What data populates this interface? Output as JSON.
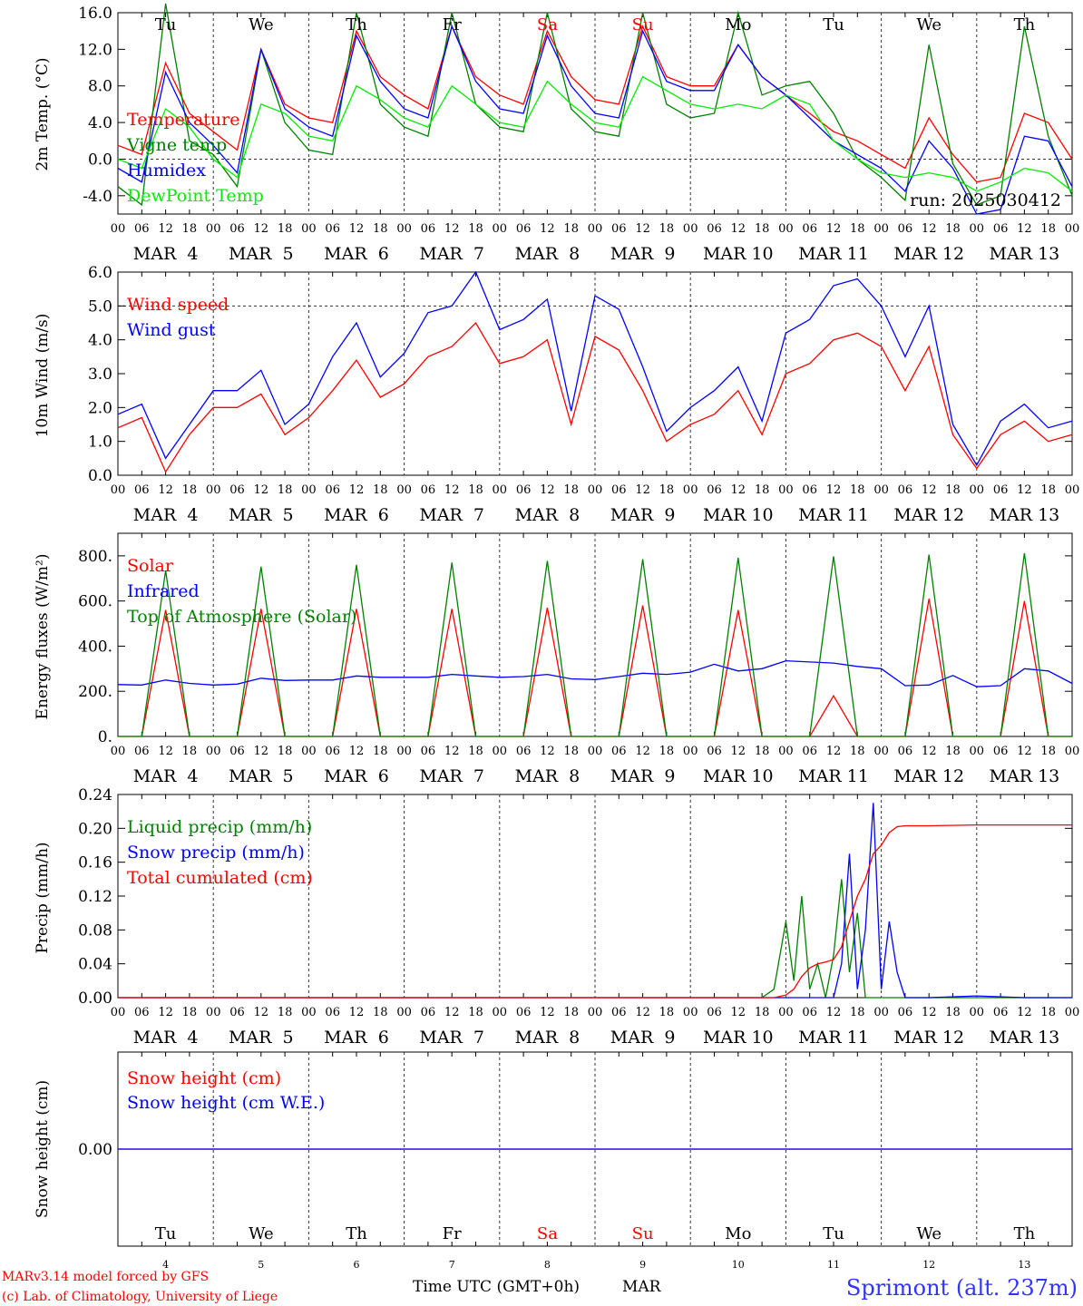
{
  "chart_data": [
    {
      "type": "line",
      "id": "temp",
      "ylabel": "2m Temp. (°C)",
      "ylim": [
        -6,
        16
      ],
      "yticks": [
        "16.0",
        "12.0",
        "8.0",
        "4.0",
        "0.0",
        "-4.0"
      ],
      "ytick_values": [
        16,
        12,
        8,
        4,
        0,
        -4
      ],
      "reference_line": 0,
      "run_label": "run: 2025030412",
      "x_hours": [
        0,
        6,
        12,
        18,
        24,
        30,
        36,
        42,
        48,
        54,
        60,
        66,
        72,
        78,
        84,
        90,
        96,
        102,
        108,
        114,
        120,
        126,
        132,
        138,
        144,
        150,
        156,
        162,
        168,
        174,
        180,
        186,
        192,
        198,
        204,
        210,
        216,
        222,
        228,
        234,
        240
      ],
      "series": [
        {
          "name": "Temperature",
          "color": "#ff0000",
          "values": [
            1.5,
            0.5,
            10.5,
            5.0,
            3.0,
            1.0,
            12.0,
            6.0,
            4.5,
            4.0,
            14.0,
            9.0,
            7.0,
            5.5,
            14.5,
            9.0,
            7.0,
            6.0,
            14.0,
            9.0,
            6.5,
            6.0,
            14.5,
            9.0,
            8.0,
            8.0,
            12.5,
            9.0,
            7.0,
            5.0,
            3.0,
            2.0,
            0.5,
            -1.0,
            4.5,
            0.5,
            -2.5,
            -2.0,
            5.0,
            4.0,
            0.0
          ]
        },
        {
          "name": "Vigne temp",
          "color": "#008000",
          "values": [
            -3.0,
            -5.0,
            17.0,
            2.0,
            0.5,
            -3.0,
            12.0,
            4.0,
            1.0,
            0.5,
            16.0,
            6.0,
            3.5,
            2.5,
            16.0,
            6.0,
            3.5,
            3.0,
            16.0,
            5.5,
            3.0,
            2.5,
            16.0,
            6.0,
            4.5,
            5.0,
            16.0,
            7.0,
            8.0,
            8.5,
            5.0,
            0.0,
            -2.0,
            -4.5,
            12.5,
            -0.5,
            -5.0,
            -4.0,
            14.5,
            2.5,
            -4.0
          ]
        },
        {
          "name": "Humidex",
          "color": "#0000ff",
          "values": [
            -1.0,
            -2.5,
            9.5,
            4.0,
            1.5,
            -1.5,
            12.0,
            5.5,
            3.5,
            2.5,
            13.5,
            8.5,
            5.5,
            4.5,
            14.5,
            8.5,
            5.5,
            5.0,
            13.5,
            8.0,
            5.0,
            4.5,
            14.0,
            8.5,
            7.5,
            7.5,
            12.5,
            9.0,
            7.0,
            4.5,
            2.0,
            0.5,
            -1.0,
            -3.5,
            2.0,
            -1.0,
            -6.0,
            -5.5,
            2.5,
            2.0,
            -3.0
          ]
        },
        {
          "name": "DewPoint Temp",
          "color": "#00ee00",
          "values": [
            0.0,
            -1.0,
            5.5,
            3.5,
            0.0,
            -2.0,
            6.0,
            5.0,
            2.5,
            2.0,
            8.0,
            6.5,
            4.5,
            3.5,
            8.0,
            6.0,
            4.0,
            3.5,
            8.5,
            6.0,
            4.0,
            3.5,
            9.0,
            7.5,
            6.0,
            5.5,
            6.0,
            5.5,
            7.0,
            6.0,
            2.0,
            0.0,
            -1.5,
            -2.0,
            -1.5,
            -2.0,
            -3.5,
            -2.5,
            -1.0,
            -1.5,
            -3.5
          ]
        }
      ]
    },
    {
      "type": "line",
      "id": "wind",
      "ylabel": "10m Wind (m/s)",
      "ylim": [
        0,
        6
      ],
      "yticks": [
        "6.0",
        "5.0",
        "4.0",
        "3.0",
        "2.0",
        "1.0",
        "0.0"
      ],
      "ytick_values": [
        6,
        5,
        4,
        3,
        2,
        1,
        0
      ],
      "reference_line": 5,
      "x_hours": [
        0,
        6,
        12,
        18,
        24,
        30,
        36,
        42,
        48,
        54,
        60,
        66,
        72,
        78,
        84,
        90,
        96,
        102,
        108,
        114,
        120,
        126,
        132,
        138,
        144,
        150,
        156,
        162,
        168,
        174,
        180,
        186,
        192,
        198,
        204,
        210,
        216,
        222,
        228,
        234,
        240
      ],
      "series": [
        {
          "name": "Wind speed",
          "color": "#ff0000",
          "values": [
            1.4,
            1.7,
            0.1,
            1.2,
            2.0,
            2.0,
            2.4,
            1.2,
            1.7,
            2.5,
            3.4,
            2.3,
            2.7,
            3.5,
            3.8,
            4.5,
            3.3,
            3.5,
            4.0,
            1.5,
            4.1,
            3.7,
            2.5,
            1.0,
            1.5,
            1.8,
            2.5,
            1.2,
            3.0,
            3.3,
            4.0,
            4.2,
            3.8,
            2.5,
            3.8,
            1.2,
            0.2,
            1.2,
            1.6,
            1.0,
            1.2
          ]
        },
        {
          "name": "Wind gust",
          "color": "#0000ff",
          "values": [
            1.8,
            2.1,
            0.5,
            1.5,
            2.5,
            2.5,
            3.1,
            1.5,
            2.1,
            3.5,
            4.5,
            2.9,
            3.6,
            4.8,
            5.0,
            6.0,
            4.3,
            4.6,
            5.2,
            1.9,
            5.3,
            4.9,
            3.2,
            1.3,
            2.0,
            2.5,
            3.2,
            1.6,
            4.2,
            4.6,
            5.6,
            5.8,
            5.0,
            3.5,
            5.0,
            1.5,
            0.3,
            1.6,
            2.1,
            1.4,
            1.6
          ]
        }
      ]
    },
    {
      "type": "line",
      "id": "energy",
      "ylabel": "Energy fluxes (W/m²)",
      "ylim": [
        0,
        900
      ],
      "yticks": [
        "800.",
        "600.",
        "400.",
        "200.",
        "0."
      ],
      "ytick_values": [
        800,
        600,
        400,
        200,
        0
      ],
      "x_hours": [
        0,
        6,
        12,
        18,
        24,
        30,
        36,
        42,
        48,
        54,
        60,
        66,
        72,
        78,
        84,
        90,
        96,
        102,
        108,
        114,
        120,
        126,
        132,
        138,
        144,
        150,
        156,
        162,
        168,
        174,
        180,
        186,
        192,
        198,
        204,
        210,
        216,
        222,
        228,
        234,
        240
      ],
      "series": [
        {
          "name": "Solar",
          "color": "#ff0000",
          "values": [
            0,
            0,
            560,
            0,
            0,
            0,
            565,
            0,
            0,
            0,
            565,
            0,
            0,
            0,
            565,
            0,
            0,
            0,
            570,
            0,
            0,
            0,
            580,
            0,
            0,
            0,
            560,
            0,
            0,
            0,
            180,
            0,
            0,
            0,
            610,
            0,
            0,
            0,
            600,
            0,
            0
          ]
        },
        {
          "name": "Infrared",
          "color": "#0000ff",
          "values": [
            230,
            228,
            250,
            235,
            228,
            232,
            258,
            248,
            250,
            250,
            268,
            262,
            262,
            262,
            275,
            268,
            262,
            265,
            275,
            255,
            252,
            265,
            280,
            275,
            285,
            320,
            290,
            300,
            335,
            330,
            325,
            310,
            300,
            225,
            228,
            270,
            220,
            225,
            300,
            290,
            235
          ]
        },
        {
          "name": "Top of Atmosphere (Solar)",
          "color": "#008000",
          "values": [
            0,
            0,
            735,
            0,
            0,
            0,
            752,
            0,
            0,
            0,
            760,
            0,
            0,
            0,
            770,
            0,
            0,
            0,
            778,
            0,
            0,
            0,
            785,
            0,
            0,
            0,
            792,
            0,
            0,
            0,
            798,
            0,
            0,
            0,
            805,
            0,
            0,
            0,
            812,
            0,
            0
          ]
        }
      ]
    },
    {
      "type": "line",
      "id": "precip",
      "ylabel": "Precip (mm/h)",
      "ylim": [
        0,
        0.24
      ],
      "yticks": [
        "0.24",
        "0.20",
        "0.16",
        "0.12",
        "0.08",
        "0.04",
        "0.00"
      ],
      "ytick_values": [
        0.24,
        0.2,
        0.16,
        0.12,
        0.08,
        0.04,
        0
      ],
      "x_hours": [
        0,
        24,
        48,
        72,
        96,
        120,
        144,
        162,
        165,
        168,
        170,
        172,
        174,
        176,
        178,
        180,
        182,
        184,
        186,
        188,
        190,
        192,
        194,
        196,
        198,
        200,
        204,
        216,
        228,
        240
      ],
      "series": [
        {
          "name": "Liquid precip (mm/h)",
          "color": "#008000",
          "values": [
            0,
            0,
            0,
            0,
            0,
            0,
            0,
            0,
            0.01,
            0.09,
            0.02,
            0.12,
            0.01,
            0.04,
            0.0,
            0.05,
            0.14,
            0.03,
            0.1,
            0.0,
            0.0,
            0.0,
            0.0,
            0.0,
            0.0,
            0.0,
            0.0,
            0.0,
            0.0,
            0.0
          ]
        },
        {
          "name": "Snow precip (mm/h)",
          "color": "#0000ff",
          "values": [
            0,
            0,
            0,
            0,
            0,
            0,
            0,
            0,
            0,
            0,
            0,
            0,
            0,
            0,
            0,
            0.0,
            0.04,
            0.17,
            0.01,
            0.08,
            0.23,
            0.01,
            0.09,
            0.03,
            0.0,
            0.0,
            0.0,
            0.002,
            0.0,
            0.0
          ]
        },
        {
          "name": "Total cumulated (cm)",
          "color": "#ff0000",
          "values": [
            0,
            0,
            0,
            0,
            0,
            0,
            0,
            0,
            0.0,
            0.003,
            0.01,
            0.025,
            0.035,
            0.04,
            0.042,
            0.045,
            0.06,
            0.09,
            0.12,
            0.14,
            0.17,
            0.18,
            0.195,
            0.202,
            0.203,
            0.203,
            0.203,
            0.204,
            0.204,
            0.204
          ]
        }
      ]
    },
    {
      "type": "line",
      "id": "snow",
      "ylabel": "Snow height (cm)",
      "ylim": [
        -1,
        1
      ],
      "yticks": [
        "0.00"
      ],
      "ytick_values": [
        0
      ],
      "x_hours": [
        0,
        240
      ],
      "series": [
        {
          "name": "Snow height (cm)",
          "color": "#ff0000",
          "values": [
            0,
            0
          ]
        },
        {
          "name": "Snow height (cm W.E.)",
          "color": "#0000ff",
          "values": [
            0,
            0
          ]
        }
      ]
    }
  ],
  "weekdays": [
    {
      "label": "Tu",
      "color": "#000000"
    },
    {
      "label": "We",
      "color": "#000000"
    },
    {
      "label": "Th",
      "color": "#000000"
    },
    {
      "label": "Fr",
      "color": "#000000"
    },
    {
      "label": "Sa",
      "color": "#ff0000"
    },
    {
      "label": "Su",
      "color": "#ff0000"
    },
    {
      "label": "Mo",
      "color": "#000000"
    },
    {
      "label": "Tu",
      "color": "#000000"
    },
    {
      "label": "We",
      "color": "#000000"
    },
    {
      "label": "Th",
      "color": "#000000"
    }
  ],
  "day_numbers": [
    "4",
    "5",
    "6",
    "7",
    "8",
    "9",
    "10",
    "11",
    "12",
    "13"
  ],
  "month": "MAR",
  "hour_ticks": [
    "00",
    "06",
    "12",
    "18"
  ],
  "end_hour_tick": "00",
  "footer": {
    "model_line": "MARv3.14 model forced by GFS",
    "copyright_line": "(c) Lab. of Climatology, University of Liege",
    "xaxis_label": "Time UTC (GMT+0h)",
    "month_label": "MAR",
    "station": "Sprimont (alt. 237m)"
  },
  "colors": {
    "red": "#ff0000",
    "green": "#008000",
    "blue": "#0000ff",
    "lightgreen": "#00ee00"
  }
}
